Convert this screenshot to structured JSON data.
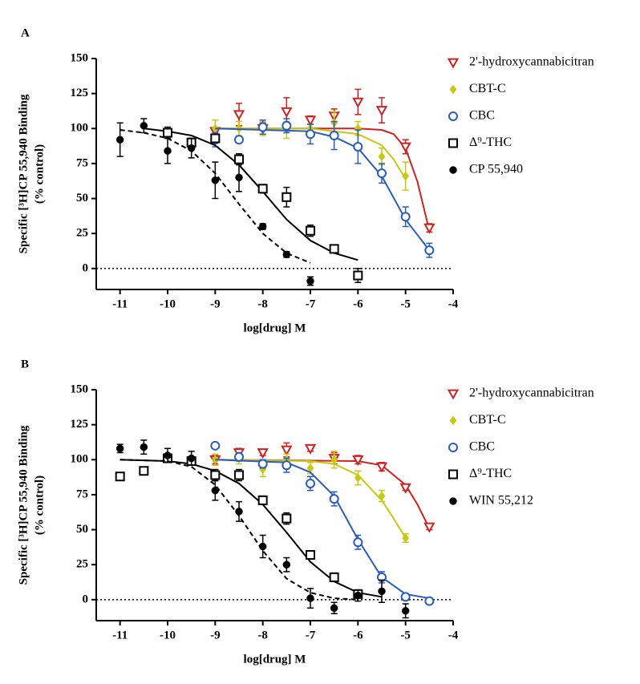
{
  "chart_data": [
    {
      "type": "scatter",
      "panel_label": "A",
      "xlabel": "log[drug] M",
      "ylabel": [
        "Specific [³H]CP 55,940 Binding",
        "(% control)"
      ],
      "xlim": [
        -11.5,
        -4
      ],
      "xticks": [
        -11,
        -10,
        -9,
        -8,
        -7,
        -6,
        -5,
        -4
      ],
      "ylim": [
        -15,
        150
      ],
      "yticks": [
        0,
        25,
        50,
        75,
        100,
        125,
        150
      ],
      "zero_line": true,
      "series": [
        {
          "name": "2'-hydroxycannabicitran",
          "color": "#d02020",
          "marker": "triangle-down-open",
          "x": [
            -9,
            -8.5,
            -8,
            -7.5,
            -7,
            -6.5,
            -6,
            -5.5,
            -5,
            -4.5
          ],
          "values": [
            98,
            110,
            100,
            112,
            106,
            109,
            119,
            113,
            87,
            29
          ],
          "errors": [
            8,
            8,
            4,
            10,
            3,
            5,
            9,
            9,
            5,
            3
          ],
          "fit": {
            "dash": false,
            "x": [
              -9,
              -6,
              -5.5,
              -5.25,
              -5,
              -4.75,
              -4.5
            ],
            "values": [
              100,
              100,
              99,
              96,
              86,
              62,
              27
            ]
          }
        },
        {
          "name": "CBT-C",
          "color": "#c8c810",
          "marker": "diamond",
          "x": [
            -9,
            -8.5,
            -8,
            -7.5,
            -7,
            -6.5,
            -6,
            -5.5,
            -5
          ],
          "values": [
            100,
            100,
            100,
            99,
            100,
            104,
            100,
            80,
            66
          ],
          "errors": [
            6,
            5,
            5,
            6,
            3,
            8,
            5,
            6,
            10
          ],
          "fit": {
            "dash": false,
            "x": [
              -9,
              -7,
              -6,
              -5.5,
              -5.25,
              -5
            ],
            "values": [
              100,
              100,
              96,
              88,
              78,
              64
            ]
          }
        },
        {
          "name": "CBC",
          "color": "#2a5cbf",
          "marker": "circle-open",
          "x": [
            -9,
            -8.5,
            -8,
            -7.5,
            -7,
            -6.5,
            -6,
            -5.5,
            -5,
            -4.5
          ],
          "values": [
            92,
            92,
            101,
            102,
            96,
            95,
            87,
            68,
            37,
            13
          ],
          "errors": [
            5,
            0,
            5,
            5,
            7,
            10,
            12,
            7,
            7,
            5
          ],
          "fit": {
            "dash": false,
            "x": [
              -9,
              -7,
              -6.5,
              -6,
              -5.5,
              -5,
              -4.5
            ],
            "values": [
              100,
              98,
              94,
              86,
              66,
              35,
              13
            ]
          }
        },
        {
          "name": "Δ⁹-THC",
          "color": "#000000",
          "marker": "square-open",
          "x": [
            -10,
            -9.5,
            -9,
            -8.5,
            -8,
            -7.5,
            -7,
            -6.5,
            -6
          ],
          "values": [
            97,
            90,
            93,
            78,
            57,
            51,
            27,
            14,
            -5
          ],
          "errors": [
            4,
            3,
            3,
            4,
            3,
            7,
            4,
            2,
            5
          ],
          "fit": {
            "dash": false,
            "x": [
              -10.5,
              -10,
              -9.5,
              -9,
              -8.5,
              -8,
              -7.5,
              -7,
              -6.5,
              -6
            ],
            "values": [
              100,
              98,
              95,
              88,
              74,
              55,
              35,
              20,
              11,
              6
            ]
          }
        },
        {
          "name": "CP 55,940",
          "color": "#000000",
          "marker": "circle",
          "x": [
            -11,
            -10.5,
            -10,
            -9.5,
            -9,
            -8.5,
            -8,
            -7.5,
            -7
          ],
          "values": [
            92,
            102,
            84,
            86,
            63,
            65,
            30,
            10,
            -9
          ],
          "errors": [
            12,
            5,
            9,
            7,
            13,
            10,
            2,
            2,
            3
          ],
          "fit": {
            "dash": true,
            "x": [
              -11,
              -10.5,
              -10,
              -9.5,
              -9,
              -8.5,
              -8,
              -7.5,
              -7
            ],
            "values": [
              99,
              97,
              93,
              84,
              68,
              46,
              25,
              11,
              4
            ]
          }
        }
      ]
    },
    {
      "type": "scatter",
      "panel_label": "B",
      "xlabel": "log[drug] M",
      "ylabel": [
        "Specific [³H]CP 55,940 Binding",
        "(% control)"
      ],
      "xlim": [
        -11.5,
        -4
      ],
      "xticks": [
        -11,
        -10,
        -9,
        -8,
        -7,
        -6,
        -5,
        -4
      ],
      "ylim": [
        -15,
        150
      ],
      "yticks": [
        0,
        25,
        50,
        75,
        100,
        125,
        150
      ],
      "zero_line": true,
      "series": [
        {
          "name": "2'-hydroxycannabicitran",
          "color": "#d02020",
          "marker": "triangle-down-open",
          "x": [
            -9,
            -8.5,
            -8,
            -7.5,
            -7,
            -6.5,
            -6,
            -5.5,
            -5,
            -4.5
          ],
          "values": [
            100,
            105,
            105,
            107,
            108,
            101,
            100,
            95,
            80,
            52
          ],
          "errors": [
            3,
            3,
            2,
            5,
            2,
            4,
            3,
            3,
            2,
            2
          ],
          "fit": {
            "dash": false,
            "x": [
              -9,
              -6,
              -5.5,
              -5,
              -4.75,
              -4.5
            ],
            "values": [
              100,
              99,
              96,
              82,
              68,
              51
            ]
          }
        },
        {
          "name": "CBT-C",
          "color": "#c8c810",
          "marker": "diamond",
          "x": [
            -9,
            -8.5,
            -8,
            -7.5,
            -7,
            -6.5,
            -6,
            -5.5,
            -5
          ],
          "values": [
            100,
            101,
            93,
            100,
            94,
            100,
            87,
            74,
            44
          ],
          "errors": [
            4,
            4,
            5,
            4,
            4,
            6,
            5,
            4,
            3
          ],
          "fit": {
            "dash": false,
            "x": [
              -9,
              -7,
              -6.5,
              -6,
              -5.5,
              -5.25,
              -5
            ],
            "values": [
              100,
              99,
              97,
              89,
              71,
              58,
              44
            ]
          }
        },
        {
          "name": "CBC",
          "color": "#2a5cbf",
          "marker": "circle-open",
          "x": [
            -9,
            -8.5,
            -8,
            -7.5,
            -7,
            -6.5,
            -6,
            -5.5,
            -5,
            -4.5
          ],
          "values": [
            110,
            102,
            97,
            96,
            83,
            72,
            41,
            16,
            2,
            -1
          ],
          "errors": [
            0,
            3,
            3,
            5,
            5,
            5,
            5,
            4,
            2,
            0
          ],
          "fit": {
            "dash": false,
            "x": [
              -9,
              -7.5,
              -7,
              -6.5,
              -6,
              -5.5,
              -5,
              -4.5
            ],
            "values": [
              100,
              98,
              91,
              74,
              43,
              16,
              4,
              1
            ]
          }
        },
        {
          "name": "Δ⁹-THC",
          "color": "#000000",
          "marker": "square-open",
          "x": [
            -11,
            -10.5,
            -10,
            -9.5,
            -9,
            -8.5,
            -8,
            -7.5,
            -7,
            -6.5,
            -6
          ],
          "values": [
            88,
            92,
            101,
            99,
            89,
            89,
            71,
            58,
            32,
            16,
            4
          ],
          "errors": [
            0,
            0,
            3,
            3,
            4,
            4,
            3,
            4,
            3,
            3,
            2
          ],
          "fit": {
            "dash": false,
            "x": [
              -11,
              -10,
              -9.5,
              -9,
              -8.5,
              -8,
              -7.5,
              -7,
              -6.5,
              -6,
              -5.5
            ],
            "values": [
              100,
              99,
              97,
              92,
              83,
              68,
              48,
              27,
              13,
              5,
              2
            ]
          }
        },
        {
          "name": "WIN 55,212",
          "color": "#000000",
          "marker": "circle",
          "x": [
            -11,
            -10.5,
            -10,
            -9.5,
            -9,
            -8.5,
            -8,
            -7.5,
            -7,
            -6.5,
            -6,
            -5.5,
            -5
          ],
          "values": [
            108,
            109,
            103,
            101,
            78,
            63,
            38,
            25,
            1,
            -6,
            3,
            6,
            -8
          ],
          "errors": [
            3,
            5,
            5,
            5,
            7,
            7,
            8,
            5,
            7,
            4,
            4,
            8,
            5
          ],
          "fit": {
            "dash": true,
            "x": [
              -11,
              -10,
              -9.5,
              -9,
              -8.5,
              -8,
              -7.5,
              -7,
              -6.5,
              -6
            ],
            "values": [
              100,
              99,
              95,
              82,
              60,
              35,
              15,
              5,
              1,
              0
            ]
          }
        }
      ]
    }
  ]
}
